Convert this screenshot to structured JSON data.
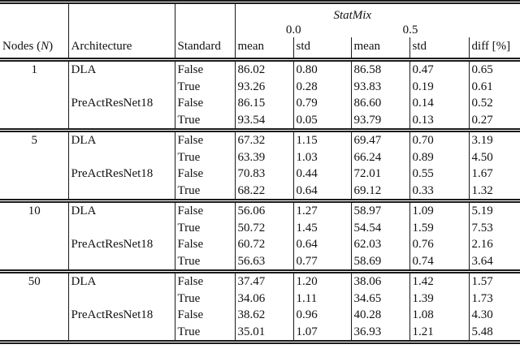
{
  "header": {
    "group_title": "StatMix",
    "sub_left": "0.0",
    "sub_right": "0.5",
    "nodes_prefix": "Nodes (",
    "nodes_var": "N",
    "nodes_suffix": ")",
    "architecture": "Architecture",
    "standard": "Standard",
    "mean": "mean",
    "std": "std",
    "diff": "diff [%]"
  },
  "rows": [
    {
      "node": "1",
      "arch": "DLA",
      "standard": "False",
      "mean0": "86.02",
      "std0": "0.80",
      "mean5": "86.58",
      "std5": "0.47",
      "diff": "0.65"
    },
    {
      "node": "",
      "arch": "",
      "standard": "True",
      "mean0": "93.26",
      "std0": "0.28",
      "mean5": "93.83",
      "std5": "0.19",
      "diff": "0.61"
    },
    {
      "node": "",
      "arch": "PreActResNet18",
      "standard": "False",
      "mean0": "86.15",
      "std0": "0.79",
      "mean5": "86.60",
      "std5": "0.14",
      "diff": "0.52"
    },
    {
      "node": "",
      "arch": "",
      "standard": "True",
      "mean0": "93.54",
      "std0": "0.05",
      "mean5": "93.79",
      "std5": "0.13",
      "diff": "0.27"
    },
    {
      "node": "5",
      "arch": "DLA",
      "standard": "False",
      "mean0": "67.32",
      "std0": "1.15",
      "mean5": "69.47",
      "std5": "0.70",
      "diff": "3.19"
    },
    {
      "node": "",
      "arch": "",
      "standard": "True",
      "mean0": "63.39",
      "std0": "1.03",
      "mean5": "66.24",
      "std5": "0.89",
      "diff": "4.50"
    },
    {
      "node": "",
      "arch": "PreActResNet18",
      "standard": "False",
      "mean0": "70.83",
      "std0": "0.44",
      "mean5": "72.01",
      "std5": "0.55",
      "diff": "1.67"
    },
    {
      "node": "",
      "arch": "",
      "standard": "True",
      "mean0": "68.22",
      "std0": "0.64",
      "mean5": "69.12",
      "std5": "0.33",
      "diff": "1.32"
    },
    {
      "node": "10",
      "arch": "DLA",
      "standard": "False",
      "mean0": "56.06",
      "std0": "1.27",
      "mean5": "58.97",
      "std5": "1.09",
      "diff": "5.19"
    },
    {
      "node": "",
      "arch": "",
      "standard": "True",
      "mean0": "50.72",
      "std0": "1.45",
      "mean5": "54.54",
      "std5": "1.59",
      "diff": "7.53"
    },
    {
      "node": "",
      "arch": "PreActResNet18",
      "standard": "False",
      "mean0": "60.72",
      "std0": "0.64",
      "mean5": "62.03",
      "std5": "0.76",
      "diff": "2.16"
    },
    {
      "node": "",
      "arch": "",
      "standard": "True",
      "mean0": "56.63",
      "std0": "0.77",
      "mean5": "58.69",
      "std5": "0.74",
      "diff": "3.64"
    },
    {
      "node": "50",
      "arch": "DLA",
      "standard": "False",
      "mean0": "37.47",
      "std0": "1.20",
      "mean5": "38.06",
      "std5": "1.42",
      "diff": "1.57"
    },
    {
      "node": "",
      "arch": "",
      "standard": "True",
      "mean0": "34.06",
      "std0": "1.11",
      "mean5": "34.65",
      "std5": "1.39",
      "diff": "1.73"
    },
    {
      "node": "",
      "arch": "PreActResNet18",
      "standard": "False",
      "mean0": "38.62",
      "std0": "0.96",
      "mean5": "40.28",
      "std5": "1.08",
      "diff": "4.30"
    },
    {
      "node": "",
      "arch": "",
      "standard": "True",
      "mean0": "35.01",
      "std0": "1.07",
      "mean5": "36.93",
      "std5": "1.21",
      "diff": "5.48"
    }
  ]
}
